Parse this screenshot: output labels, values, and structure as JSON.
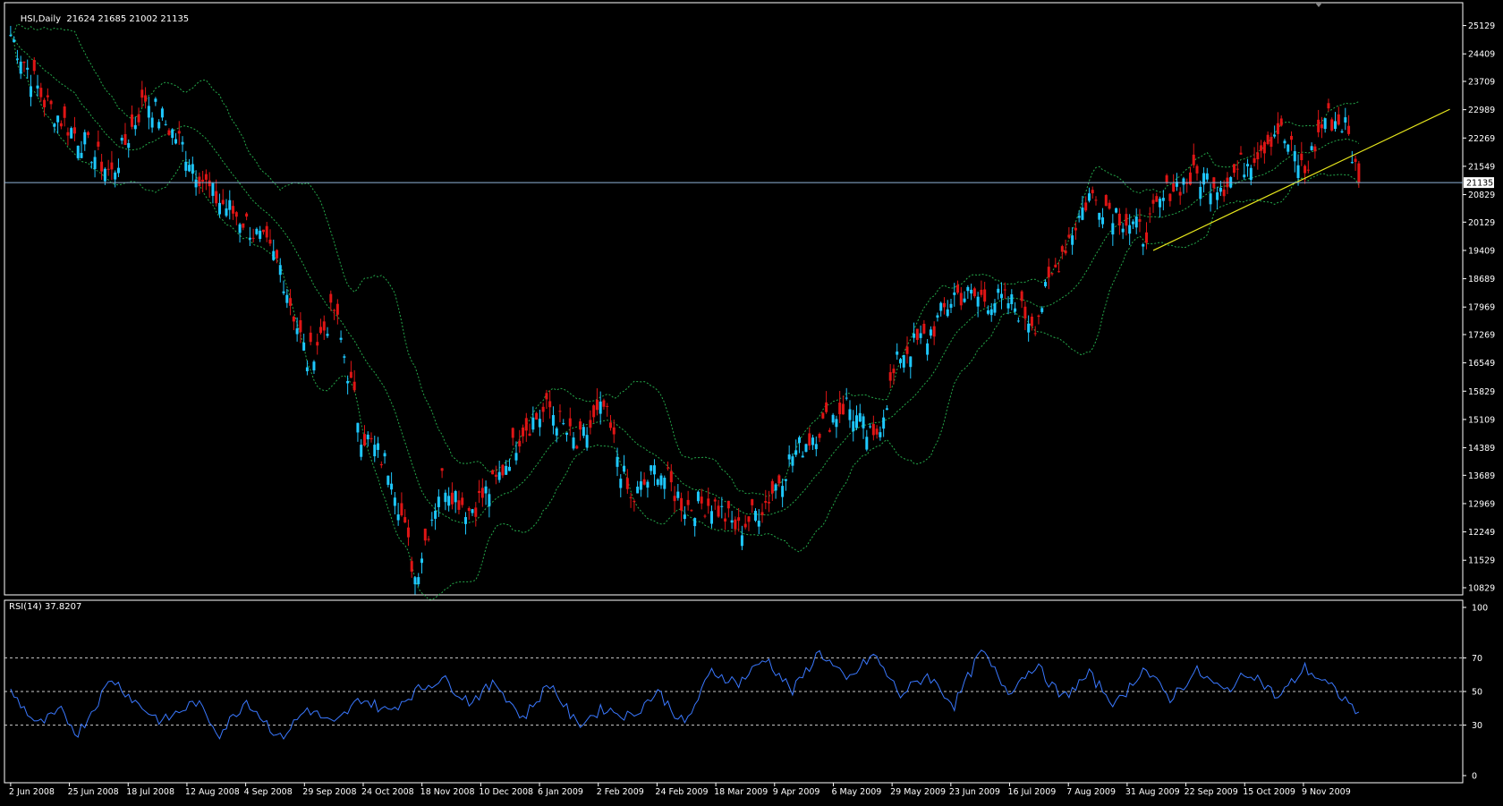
{
  "header": {
    "symbol_label": "HSI,Daily",
    "ohlc_label": "21624 21685 21002 21135"
  },
  "rsi_panel": {
    "title": "RSI(14) 37.8207"
  },
  "current_price_tag": "21135",
  "colors": {
    "background": "#000000",
    "frame": "#ffffff",
    "bull_candle": "#1ec8ff",
    "bear_candle": "#e01515",
    "bollinger": "#24a84a",
    "trendline": "#e6e61c",
    "price_line": "#8fb4d8",
    "rsi_line": "#3a78ff",
    "rsi_levels": "#cccccc"
  },
  "chart_data": [
    {
      "type": "candlestick",
      "name": "price",
      "title": "HSI,Daily",
      "y_ticks": [
        25129,
        24409,
        23709,
        22989,
        22269,
        21549,
        20829,
        20129,
        19409,
        18689,
        17969,
        17269,
        16549,
        15829,
        15109,
        14389,
        13689,
        12969,
        12249,
        11529,
        10829
      ],
      "ylim": [
        10829,
        25529
      ],
      "x_ticks": [
        "2 Jun 2008",
        "25 Jun 2008",
        "18 Jul 2008",
        "12 Aug 2008",
        "4 Sep 2008",
        "29 Sep 2008",
        "24 Oct 2008",
        "18 Nov 2008",
        "10 Dec 2008",
        "6 Jan 2009",
        "2 Feb 2009",
        "24 Feb 2009",
        "18 Mar 2009",
        "9 Apr 2009",
        "6 May 2009",
        "29 May 2009",
        "23 Jun 2009",
        "16 Jul 2009",
        "7 Aug 2009",
        "31 Aug 2009",
        "22 Sep 2009",
        "15 Oct 2009",
        "9 Nov 2009"
      ],
      "close_path": [
        [
          0,
          24900
        ],
        [
          10,
          23200
        ],
        [
          20,
          22300
        ],
        [
          30,
          21350
        ],
        [
          40,
          23300
        ],
        [
          50,
          22200
        ],
        [
          60,
          20800
        ],
        [
          70,
          20100
        ],
        [
          80,
          19000
        ],
        [
          88,
          16600
        ],
        [
          96,
          17900
        ],
        [
          104,
          14800
        ],
        [
          113,
          13800
        ],
        [
          120,
          11100
        ],
        [
          128,
          13600
        ],
        [
          136,
          12800
        ],
        [
          144,
          13500
        ],
        [
          152,
          14900
        ],
        [
          160,
          15400
        ],
        [
          168,
          14400
        ],
        [
          176,
          15400
        ],
        [
          184,
          13000
        ],
        [
          192,
          13900
        ],
        [
          200,
          12900
        ],
        [
          208,
          13000
        ],
        [
          216,
          12300
        ],
        [
          224,
          13000
        ],
        [
          232,
          14200
        ],
        [
          240,
          14900
        ],
        [
          248,
          15500
        ],
        [
          256,
          14500
        ],
        [
          264,
          16800
        ],
        [
          272,
          17200
        ],
        [
          280,
          18300
        ],
        [
          288,
          18200
        ],
        [
          296,
          18100
        ],
        [
          304,
          17600
        ],
        [
          312,
          19400
        ],
        [
          320,
          20800
        ],
        [
          328,
          20400
        ],
        [
          336,
          19800
        ],
        [
          344,
          21000
        ],
        [
          352,
          21300
        ],
        [
          360,
          21100
        ],
        [
          368,
          21800
        ],
        [
          376,
          22500
        ],
        [
          384,
          21400
        ],
        [
          390,
          22800
        ],
        [
          396,
          22600
        ],
        [
          400,
          21135
        ]
      ],
      "last_close": 21135,
      "trendline": [
        [
          339,
          19409
        ],
        [
          427,
          23000
        ]
      ]
    },
    {
      "type": "line",
      "name": "RSI(14)",
      "title": "RSI(14) 37.8207",
      "y_ticks": [
        100,
        70,
        50,
        30,
        0
      ],
      "ylim": [
        0,
        100
      ],
      "levels": [
        70,
        50,
        30
      ],
      "x_ticks": [
        "2 Jun 2008",
        "25 Jun 2008",
        "18 Jul 2008",
        "12 Aug 2008",
        "4 Sep 2008",
        "29 Sep 2008",
        "24 Oct 2008",
        "18 Nov 2008",
        "10 Dec 2008",
        "6 Jan 2009",
        "2 Feb 2009",
        "24 Feb 2009",
        "18 Mar 2009",
        "9 Apr 2009",
        "6 May 2009",
        "29 May 2009",
        "23 Jun 2009",
        "16 Jul 2009",
        "7 Aug 2009",
        "31 Aug 2009",
        "22 Sep 2009",
        "15 Oct 2009",
        "9 Nov 2009"
      ],
      "values_path": [
        [
          0,
          50
        ],
        [
          8,
          30
        ],
        [
          15,
          38
        ],
        [
          20,
          25
        ],
        [
          30,
          58
        ],
        [
          38,
          42
        ],
        [
          45,
          32
        ],
        [
          55,
          44
        ],
        [
          62,
          25
        ],
        [
          70,
          45
        ],
        [
          80,
          22
        ],
        [
          88,
          40
        ],
        [
          96,
          30
        ],
        [
          104,
          46
        ],
        [
          112,
          38
        ],
        [
          120,
          50
        ],
        [
          128,
          58
        ],
        [
          136,
          44
        ],
        [
          144,
          55
        ],
        [
          152,
          34
        ],
        [
          160,
          55
        ],
        [
          168,
          30
        ],
        [
          176,
          40
        ],
        [
          184,
          35
        ],
        [
          192,
          50
        ],
        [
          200,
          30
        ],
        [
          208,
          62
        ],
        [
          216,
          55
        ],
        [
          224,
          70
        ],
        [
          232,
          50
        ],
        [
          240,
          74
        ],
        [
          248,
          56
        ],
        [
          256,
          72
        ],
        [
          264,
          48
        ],
        [
          272,
          60
        ],
        [
          280,
          42
        ],
        [
          288,
          74
        ],
        [
          296,
          50
        ],
        [
          304,
          66
        ],
        [
          312,
          46
        ],
        [
          320,
          60
        ],
        [
          328,
          42
        ],
        [
          336,
          64
        ],
        [
          344,
          46
        ],
        [
          352,
          62
        ],
        [
          360,
          50
        ],
        [
          368,
          62
        ],
        [
          376,
          46
        ],
        [
          384,
          64
        ],
        [
          392,
          52
        ],
        [
          400,
          37.82
        ]
      ],
      "last_value": 37.8207
    }
  ]
}
